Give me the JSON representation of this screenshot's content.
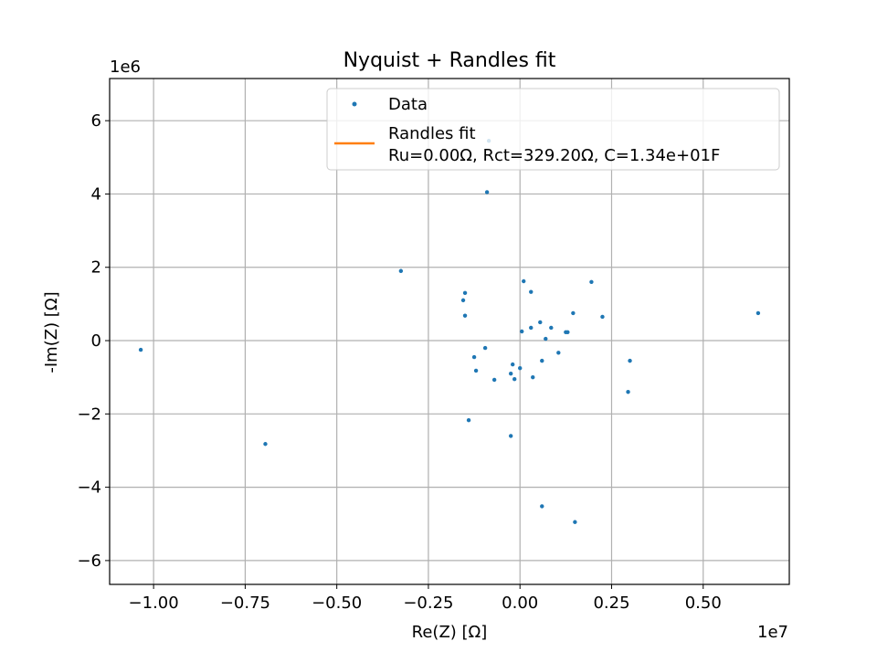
{
  "chart_data": {
    "type": "scatter",
    "title": "Nyquist + Randles fit",
    "xlabel": "Re(Z) [Ω]",
    "ylabel": "-Im(Z) [Ω]",
    "x_offset_label": "1e7",
    "y_offset_label": "1e6",
    "xlim": [
      -11200000,
      7350000
    ],
    "ylim": [
      -6650000,
      7150000
    ],
    "xticks": [
      {
        "value": -10000000,
        "label": "−1.00"
      },
      {
        "value": -7500000,
        "label": "−0.75"
      },
      {
        "value": -5000000,
        "label": "−0.50"
      },
      {
        "value": -2500000,
        "label": "−0.25"
      },
      {
        "value": 0,
        "label": "0.00"
      },
      {
        "value": 2500000,
        "label": "0.25"
      },
      {
        "value": 5000000,
        "label": "0.50"
      }
    ],
    "yticks": [
      {
        "value": -6000000,
        "label": "−6"
      },
      {
        "value": -4000000,
        "label": "−4"
      },
      {
        "value": -2000000,
        "label": "−2"
      },
      {
        "value": 0,
        "label": "0"
      },
      {
        "value": 2000000,
        "label": "2"
      },
      {
        "value": 4000000,
        "label": "4"
      },
      {
        "value": 6000000,
        "label": "6"
      }
    ],
    "grid": true,
    "legend_position": "top-right",
    "series": [
      {
        "name": "Data",
        "color": "#1f77b4",
        "points": [
          [
            -10350000,
            -250000
          ],
          [
            -6950000,
            -2820000
          ],
          [
            -3250000,
            1900000
          ],
          [
            -1550000,
            1100000
          ],
          [
            -1500000,
            1300000
          ],
          [
            -1500000,
            680000
          ],
          [
            -1400000,
            -2170000
          ],
          [
            -1250000,
            -450000
          ],
          [
            -1200000,
            -820000
          ],
          [
            -950000,
            -200000
          ],
          [
            -900000,
            4050000
          ],
          [
            -850000,
            5450000
          ],
          [
            -700000,
            -1070000
          ],
          [
            -250000,
            -900000
          ],
          [
            -250000,
            -2600000
          ],
          [
            -200000,
            -650000
          ],
          [
            -150000,
            -1050000
          ],
          [
            0,
            -750000
          ],
          [
            50000,
            250000
          ],
          [
            100000,
            1620000
          ],
          [
            300000,
            1330000
          ],
          [
            300000,
            350000
          ],
          [
            350000,
            -1000000
          ],
          [
            550000,
            500000
          ],
          [
            600000,
            -550000
          ],
          [
            600000,
            -4520000
          ],
          [
            700000,
            50000
          ],
          [
            850000,
            350000
          ],
          [
            1050000,
            -330000
          ],
          [
            1250000,
            230000
          ],
          [
            1300000,
            230000
          ],
          [
            1450000,
            750000
          ],
          [
            1500000,
            -4950000
          ],
          [
            1950000,
            1600000
          ],
          [
            2250000,
            650000
          ],
          [
            2950000,
            -1400000
          ],
          [
            3000000,
            -550000
          ],
          [
            6500000,
            750000
          ]
        ]
      },
      {
        "name": "Randles fit\nRu=0.00Ω, Rct=329.20Ω, C=1.34e+01F",
        "color": "#ff7f0e",
        "points": [
          [
            0,
            0
          ],
          [
            329.2,
            0
          ]
        ]
      }
    ]
  }
}
